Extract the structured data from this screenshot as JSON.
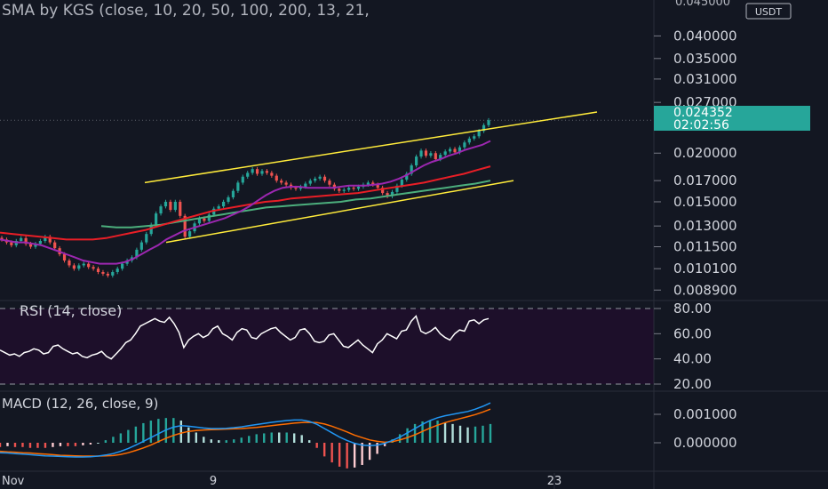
{
  "header": {
    "indicator_label": "SMA by KGS (close, 10, 20, 50, 100, 200, 13, 21,",
    "currency_badge": "USDT",
    "top_tick_partial": "0.045000"
  },
  "price_marker": {
    "value": "0.024352",
    "countdown": "02:02:56"
  },
  "rsi": {
    "label": "RSI (14, close)"
  },
  "macd": {
    "label": "MACD (12, 26, close, 9)"
  },
  "x_axis": {
    "ticks": [
      "Nov",
      "9",
      "23"
    ]
  },
  "colors": {
    "background": "#131722",
    "up": "#26a69a",
    "down": "#ef5350",
    "channel": "#ffeb3b",
    "sma_fast": "#9c27b0",
    "sma_mid": "#e91e26",
    "sma_slow": "#4caf7d",
    "rsi_line": "#ffffff",
    "rsi_band": "#1d0f2a",
    "macd_line": "#2196f3",
    "signal_line": "#ff6d00",
    "marker": "#26a69a"
  },
  "chart_data": [
    {
      "type": "candlestick",
      "ylim": [
        0.0085,
        0.045
      ],
      "scale": "log",
      "y_ticks": [
        "0.040000",
        "0.035000",
        "0.031000",
        "0.027000",
        "0.024352",
        "0.020000",
        "0.017000",
        "0.015000",
        "0.013000",
        "0.011500",
        "0.010100",
        "0.008900"
      ],
      "close": [
        0.012,
        0.0118,
        0.0116,
        0.0119,
        0.0121,
        0.0117,
        0.0115,
        0.0117,
        0.0119,
        0.0122,
        0.0118,
        0.0114,
        0.011,
        0.0106,
        0.0103,
        0.0101,
        0.0103,
        0.0104,
        0.0102,
        0.0101,
        0.0099,
        0.0098,
        0.0097,
        0.0099,
        0.0101,
        0.0104,
        0.0106,
        0.0108,
        0.0113,
        0.0118,
        0.0124,
        0.0131,
        0.014,
        0.0146,
        0.015,
        0.0143,
        0.015,
        0.0138,
        0.0122,
        0.0126,
        0.0132,
        0.0136,
        0.0134,
        0.0139,
        0.0144,
        0.0146,
        0.015,
        0.0154,
        0.016,
        0.0168,
        0.0174,
        0.0178,
        0.0182,
        0.0177,
        0.018,
        0.0178,
        0.0175,
        0.017,
        0.0168,
        0.0166,
        0.0163,
        0.0162,
        0.0164,
        0.0167,
        0.017,
        0.0172,
        0.0174,
        0.017,
        0.0166,
        0.0162,
        0.016,
        0.0161,
        0.0163,
        0.0162,
        0.0164,
        0.0166,
        0.0168,
        0.0166,
        0.0163,
        0.0158,
        0.0155,
        0.0159,
        0.0165,
        0.0171,
        0.0177,
        0.0186,
        0.0196,
        0.0203,
        0.0197,
        0.02,
        0.0193,
        0.0198,
        0.0202,
        0.0205,
        0.0201,
        0.0207,
        0.0213,
        0.0218,
        0.0221,
        0.0228,
        0.0236,
        0.0243
      ],
      "sma_fast": [
        0.012,
        0.0119,
        0.0118,
        0.0118,
        0.0117,
        0.0116,
        0.0114,
        0.0112,
        0.011,
        0.0108,
        0.0106,
        0.0105,
        0.0104,
        0.0104,
        0.0104,
        0.0105,
        0.0107,
        0.011,
        0.0113,
        0.0116,
        0.012,
        0.0123,
        0.0126,
        0.0128,
        0.013,
        0.0132,
        0.0134,
        0.0136,
        0.0139,
        0.0142,
        0.0146,
        0.0151,
        0.0156,
        0.016,
        0.0163,
        0.0164,
        0.0164,
        0.0163,
        0.0163,
        0.0163,
        0.0163,
        0.0164,
        0.0165,
        0.0165,
        0.0165,
        0.0166,
        0.0167,
        0.0169,
        0.0172,
        0.0176,
        0.0181,
        0.0186,
        0.019,
        0.0193,
        0.0197,
        0.02,
        0.0204,
        0.0207,
        0.021,
        0.0215
      ],
      "sma_mid": [
        0.0125,
        0.0124,
        0.0123,
        0.0122,
        0.0121,
        0.012,
        0.012,
        0.012,
        0.0121,
        0.0123,
        0.0125,
        0.0127,
        0.013,
        0.0133,
        0.0136,
        0.0139,
        0.0142,
        0.0144,
        0.0146,
        0.0148,
        0.015,
        0.0151,
        0.0153,
        0.0154,
        0.0155,
        0.0156,
        0.0157,
        0.0158,
        0.016,
        0.0162,
        0.0164,
        0.0166,
        0.0168,
        0.0171,
        0.0174,
        0.0177,
        0.0181,
        0.0185
      ],
      "sma_slow": [
        0.013,
        0.0129,
        0.0129,
        0.013,
        0.0131,
        0.0133,
        0.0135,
        0.0137,
        0.0139,
        0.0141,
        0.0143,
        0.0145,
        0.0146,
        0.0147,
        0.0148,
        0.0149,
        0.015,
        0.0152,
        0.0153,
        0.0155,
        0.0157,
        0.0159,
        0.0161,
        0.0163,
        0.0165,
        0.0167,
        0.017
      ],
      "channel_upper": [
        0.0168,
        0.0255
      ],
      "channel_lower": [
        0.0118,
        0.017
      ]
    },
    {
      "type": "line",
      "title": "RSI (14, close)",
      "ylim": [
        20,
        80
      ],
      "y_ticks": [
        "80.00",
        "60.00",
        "40.00",
        "20.00"
      ],
      "values": [
        47,
        45,
        43,
        44,
        42,
        45,
        46,
        48,
        47,
        44,
        45,
        50,
        51,
        48,
        46,
        44,
        45,
        42,
        41,
        43,
        44,
        46,
        42,
        40,
        44,
        48,
        53,
        55,
        60,
        66,
        68,
        70,
        72,
        70,
        69,
        73,
        68,
        61,
        49,
        55,
        58,
        60,
        57,
        59,
        64,
        66,
        60,
        58,
        55,
        61,
        64,
        63,
        57,
        56,
        60,
        62,
        64,
        65,
        61,
        58,
        55,
        57,
        63,
        64,
        60,
        54,
        53,
        54,
        59,
        60,
        55,
        50,
        49,
        52,
        55,
        51,
        48,
        45,
        52,
        55,
        60,
        58,
        56,
        62,
        63,
        70,
        74,
        62,
        60,
        62,
        65,
        60,
        57,
        55,
        60,
        63,
        62,
        70,
        71,
        68,
        71,
        72
      ],
      "x_labels": [
        "Nov",
        "9",
        "23"
      ]
    },
    {
      "type": "line",
      "title": "MACD (12, 26, close, 9)",
      "y_ticks": [
        "0.001000",
        "0.000000"
      ],
      "macd": [
        -0.00035,
        -0.00036,
        -0.00038,
        -0.0004,
        -0.00042,
        -0.00044,
        -0.00046,
        -0.00047,
        -0.00048,
        -0.00049,
        -0.0005,
        -0.0005,
        -0.00049,
        -0.00047,
        -0.00043,
        -0.00038,
        -0.0003,
        -0.0002,
        -8e-05,
        5e-05,
        0.00018,
        0.00032,
        0.00045,
        0.00055,
        0.0006,
        0.00058,
        0.00055,
        0.00052,
        0.0005,
        0.0005,
        0.00051,
        0.00053,
        0.00056,
        0.0006,
        0.00064,
        0.00068,
        0.00072,
        0.00075,
        0.00078,
        0.0008,
        0.0008,
        0.00075,
        0.00065,
        0.0005,
        0.00035,
        0.0002,
        8e-05,
        -2e-05,
        -8e-05,
        -0.0001,
        -8e-05,
        -2e-05,
        8e-05,
        0.0002,
        0.00035,
        0.0005,
        0.00065,
        0.00078,
        0.00088,
        0.00095,
        0.001,
        0.00105,
        0.0011,
        0.00118,
        0.00128,
        0.0014
      ],
      "signal": [
        -0.0003,
        -0.00032,
        -0.00033,
        -0.00035,
        -0.00036,
        -0.00038,
        -0.0004,
        -0.00042,
        -0.00044,
        -0.00045,
        -0.00046,
        -0.00047,
        -0.00047,
        -0.00047,
        -0.00046,
        -0.00045,
        -0.00041,
        -0.00035,
        -0.00027,
        -0.00018,
        -8e-05,
        4e-05,
        0.00016,
        0.00026,
        0.00034,
        0.0004,
        0.00043,
        0.00045,
        0.00046,
        0.00047,
        0.00048,
        0.00049,
        0.0005,
        0.00052,
        0.00054,
        0.00057,
        0.0006,
        0.00063,
        0.00066,
        0.00069,
        0.00071,
        0.00072,
        0.00071,
        0.00066,
        0.00058,
        0.00048,
        0.00038,
        0.00027,
        0.00018,
        0.0001,
        5e-05,
        2e-05,
        4e-05,
        0.0001,
        0.00018,
        0.00028,
        0.0004,
        0.00052,
        0.00062,
        0.00071,
        0.00078,
        0.00085,
        0.00092,
        0.00099,
        0.00108,
        0.00118
      ]
    }
  ]
}
